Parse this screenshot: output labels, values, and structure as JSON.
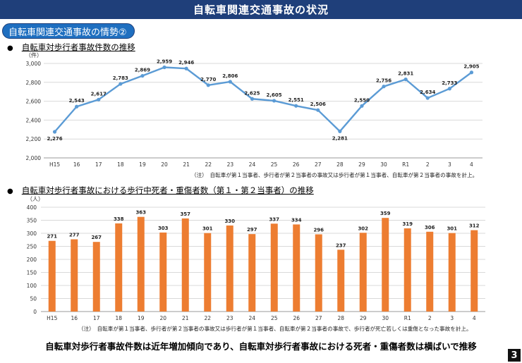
{
  "header": {
    "title": "自転車関連交通事故の状況"
  },
  "section": {
    "label": "自転車関連交通事故の情勢②"
  },
  "page_number": "3",
  "conclusion": "自転車対歩行者事故件数は近年増加傾向であり、自転車対歩行者事故における死者・重傷者数は横ばいで推移",
  "colors": {
    "header_bg": "#1f3f7a",
    "line": "#5b9bd5",
    "bar": "#ed7d31"
  },
  "charts": [
    {
      "heading": "自転車対歩行者事故件数の推移",
      "unit": "（件）",
      "note": "（注）　自転車が第１当事者、歩行者が第２当事者の事故又は歩行者が第１当事者、自転車が第２当事者の事故を計上。"
    },
    {
      "heading": "自転車対歩行者事故における歩行中死者・重傷者数（第１・第２当事者）の推移",
      "unit": "（人）",
      "note": "（注）　自転車が第１当事者、歩行者が第２当事者の事故又は歩行者が第１当事者、自転車が第２当事者の事故で、歩行者が死亡若しくは重傷となった事故を計上。"
    }
  ],
  "chart_data": [
    {
      "type": "line",
      "title": "自転車対歩行者事故件数の推移",
      "ylabel": "（件）",
      "categories": [
        "H15",
        "16",
        "17",
        "18",
        "19",
        "20",
        "21",
        "22",
        "23",
        "24",
        "25",
        "26",
        "27",
        "28",
        "29",
        "30",
        "R1",
        "2",
        "3",
        "4"
      ],
      "values": [
        2276,
        2543,
        2617,
        2783,
        2869,
        2959,
        2946,
        2770,
        2806,
        2625,
        2605,
        2551,
        2506,
        2281,
        2550,
        2756,
        2831,
        2634,
        2733,
        2905
      ],
      "data_labels": [
        "2,276",
        "2,543",
        "2,617",
        "2,783",
        "2,869",
        "2,959",
        "2,946",
        "2,770",
        "2,806",
        "2,625",
        "2,605",
        "2,551",
        "2,506",
        "2,281",
        "2,550",
        "2,756",
        "2,831",
        "2,634",
        "2,733",
        "2,905"
      ],
      "ylim": [
        2000,
        3000
      ],
      "yticks": [
        2000,
        2200,
        2400,
        2600,
        2800,
        3000
      ],
      "ytick_labels": [
        "2,000",
        "2,200",
        "2,400",
        "2,600",
        "2,800",
        "3,000"
      ],
      "grid": true
    },
    {
      "type": "bar",
      "title": "自転車対歩行者事故における歩行中死者・重傷者数（第１・第２当事者）の推移",
      "ylabel": "（人）",
      "categories": [
        "H15",
        "16",
        "17",
        "18",
        "19",
        "20",
        "21",
        "22",
        "23",
        "24",
        "25",
        "26",
        "27",
        "28",
        "29",
        "30",
        "R1",
        "2",
        "3",
        "4"
      ],
      "values": [
        271,
        277,
        267,
        338,
        363,
        303,
        357,
        301,
        330,
        297,
        337,
        334,
        296,
        237,
        302,
        359,
        319,
        306,
        301,
        312
      ],
      "ylim": [
        0,
        400
      ],
      "yticks": [
        0,
        50,
        100,
        150,
        200,
        250,
        300,
        350,
        400
      ],
      "grid": true
    }
  ]
}
